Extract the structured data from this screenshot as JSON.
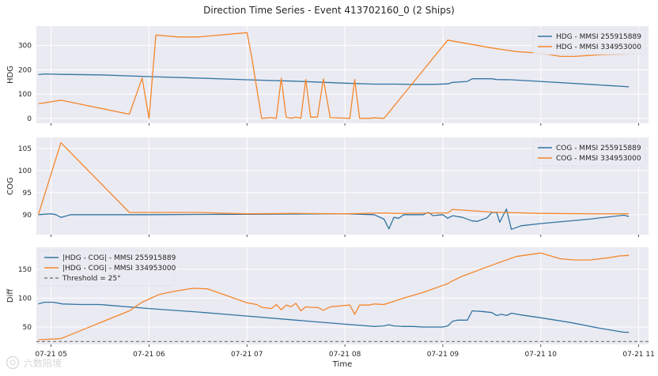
{
  "figure": {
    "title": "Direction Time Series - Event 413702160_0 (2 Ships)",
    "watermark": "六数陪境"
  },
  "colors": {
    "blue": "#3274a1",
    "orange": "#f5862a",
    "panel_bg": "#eaeaf2",
    "grid": "#ffffff",
    "threshold": "#7f7f7f"
  },
  "chart_data": [
    {
      "type": "line",
      "id": "hdg",
      "ylabel": "HDG",
      "xlabel": "",
      "ylim": [
        -20,
        380
      ],
      "yticks": [
        0,
        100,
        200,
        300
      ],
      "xlim": [
        4.85,
        11.1
      ],
      "xticks": [
        5,
        6,
        7,
        8,
        9,
        10,
        11
      ],
      "grid": true,
      "legend_position": "top-right",
      "series": [
        {
          "name": "HDG - MMSI 255915889",
          "color": "#3274a1",
          "points": [
            [
              4.87,
              180
            ],
            [
              4.93,
              183
            ],
            [
              5.02,
              182
            ],
            [
              5.12,
              181
            ],
            [
              5.5,
              179
            ],
            [
              6.0,
              172
            ],
            [
              6.5,
              166
            ],
            [
              7.0,
              159
            ],
            [
              7.5,
              153
            ],
            [
              8.0,
              145
            ],
            [
              8.3,
              141
            ],
            [
              8.5,
              141
            ],
            [
              8.7,
              140
            ],
            [
              8.9,
              140
            ],
            [
              9.05,
              142
            ],
            [
              9.1,
              148
            ],
            [
              9.25,
              152
            ],
            [
              9.3,
              163
            ],
            [
              9.5,
              163
            ],
            [
              9.55,
              160
            ],
            [
              9.7,
              159
            ],
            [
              10.0,
              152
            ],
            [
              10.5,
              140
            ],
            [
              10.9,
              130
            ]
          ]
        },
        {
          "name": "HDG - MMSI 334953000",
          "color": "#f5862a",
          "points": [
            [
              4.87,
              60
            ],
            [
              5.1,
              75
            ],
            [
              5.8,
              17
            ],
            [
              5.93,
              166
            ],
            [
              6.0,
              0
            ],
            [
              6.07,
              343
            ],
            [
              6.3,
              335
            ],
            [
              6.5,
              335
            ],
            [
              7.0,
              353
            ],
            [
              7.05,
              250
            ],
            [
              7.15,
              0
            ],
            [
              7.25,
              3
            ],
            [
              7.3,
              0
            ],
            [
              7.35,
              165
            ],
            [
              7.4,
              5
            ],
            [
              7.45,
              0
            ],
            [
              7.5,
              5
            ],
            [
              7.55,
              0
            ],
            [
              7.6,
              160
            ],
            [
              7.65,
              5
            ],
            [
              7.72,
              5
            ],
            [
              7.78,
              162
            ],
            [
              7.85,
              3
            ],
            [
              8.05,
              0
            ],
            [
              8.1,
              160
            ],
            [
              8.15,
              0
            ],
            [
              8.25,
              0
            ],
            [
              8.3,
              2
            ],
            [
              8.4,
              0
            ],
            [
              9.05,
              322
            ],
            [
              9.5,
              290
            ],
            [
              9.75,
              275
            ],
            [
              10.0,
              268
            ],
            [
              10.2,
              255
            ],
            [
              10.35,
              255
            ],
            [
              10.6,
              262
            ],
            [
              10.9,
              265
            ]
          ]
        }
      ]
    },
    {
      "type": "line",
      "id": "cog",
      "ylabel": "COG",
      "xlabel": "",
      "ylim": [
        85.5,
        107.5
      ],
      "yticks": [
        90,
        95,
        100,
        105
      ],
      "xlim": [
        4.85,
        11.1
      ],
      "xticks": [
        5,
        6,
        7,
        8,
        9,
        10,
        11
      ],
      "grid": true,
      "legend_position": "top-right",
      "series": [
        {
          "name": "COG - MMSI 255915889",
          "color": "#3274a1",
          "points": [
            [
              4.87,
              90
            ],
            [
              5.0,
              90.2
            ],
            [
              5.05,
              90
            ],
            [
              5.1,
              89.4
            ],
            [
              5.2,
              90
            ],
            [
              5.5,
              90
            ],
            [
              6.0,
              90
            ],
            [
              7.0,
              90.1
            ],
            [
              8.0,
              90.2
            ],
            [
              8.3,
              90
            ],
            [
              8.35,
              89.5
            ],
            [
              8.4,
              89
            ],
            [
              8.45,
              86.8
            ],
            [
              8.5,
              89.4
            ],
            [
              8.55,
              89.2
            ],
            [
              8.6,
              90
            ],
            [
              8.8,
              90
            ],
            [
              8.85,
              90.5
            ],
            [
              8.9,
              89.8
            ],
            [
              9.0,
              90
            ],
            [
              9.05,
              89.2
            ],
            [
              9.1,
              89.8
            ],
            [
              9.2,
              89.4
            ],
            [
              9.3,
              88.6
            ],
            [
              9.35,
              88.5
            ],
            [
              9.4,
              88.9
            ],
            [
              9.45,
              89.3
            ],
            [
              9.5,
              90.5
            ],
            [
              9.55,
              90.5
            ],
            [
              9.58,
              88.3
            ],
            [
              9.65,
              91.3
            ],
            [
              9.7,
              86.7
            ],
            [
              9.8,
              87.5
            ],
            [
              10.0,
              88
            ],
            [
              10.5,
              89
            ],
            [
              10.85,
              89.9
            ],
            [
              10.9,
              89.6
            ]
          ]
        },
        {
          "name": "COG - MMSI 334953000",
          "color": "#f5862a",
          "points": [
            [
              4.87,
              90
            ],
            [
              5.1,
              106.3
            ],
            [
              5.8,
              90.5
            ],
            [
              6.5,
              90.5
            ],
            [
              7.0,
              90.2
            ],
            [
              7.5,
              90.3
            ],
            [
              8.0,
              90.2
            ],
            [
              8.4,
              90.4
            ],
            [
              8.5,
              90.3
            ],
            [
              9.0,
              90.4
            ],
            [
              9.05,
              90.4
            ],
            [
              9.1,
              91.2
            ],
            [
              9.5,
              90.6
            ],
            [
              10.0,
              90.3
            ],
            [
              10.5,
              90.2
            ],
            [
              10.9,
              90.2
            ]
          ]
        }
      ]
    },
    {
      "type": "line",
      "id": "diff",
      "ylabel": "Diff",
      "xlabel": "Time",
      "ylim": [
        20,
        188
      ],
      "yticks": [
        50,
        100,
        150
      ],
      "xlim": [
        4.85,
        11.1
      ],
      "xticks": [
        5,
        6,
        7,
        8,
        9,
        10,
        11
      ],
      "xtick_labels": [
        "07-21 05",
        "07-21 06",
        "07-21 07",
        "07-21 08",
        "07-21 09",
        "07-21 10",
        "07-21 11"
      ],
      "grid": true,
      "legend_position": "top-left",
      "threshold": {
        "name": "Threshold = 25°",
        "value": 25,
        "color": "#7f7f7f"
      },
      "series": [
        {
          "name": "|HDG - COG| - MMSI 255915889",
          "color": "#3274a1",
          "points": [
            [
              4.87,
              90
            ],
            [
              4.93,
              93
            ],
            [
              5.02,
              93
            ],
            [
              5.12,
              90
            ],
            [
              5.3,
              89
            ],
            [
              5.5,
              89
            ],
            [
              6.0,
              82
            ],
            [
              6.5,
              76
            ],
            [
              7.0,
              69
            ],
            [
              7.5,
              62
            ],
            [
              8.0,
              55
            ],
            [
              8.3,
              51
            ],
            [
              8.4,
              52
            ],
            [
              8.45,
              54
            ],
            [
              8.5,
              52
            ],
            [
              8.6,
              51
            ],
            [
              8.7,
              51
            ],
            [
              8.8,
              50
            ],
            [
              9.0,
              50
            ],
            [
              9.05,
              52
            ],
            [
              9.1,
              60
            ],
            [
              9.15,
              62
            ],
            [
              9.25,
              62
            ],
            [
              9.3,
              78
            ],
            [
              9.4,
              77
            ],
            [
              9.5,
              75
            ],
            [
              9.55,
              70
            ],
            [
              9.6,
              72
            ],
            [
              9.65,
              70
            ],
            [
              9.7,
              74
            ],
            [
              9.8,
              71
            ],
            [
              10.0,
              66
            ],
            [
              10.3,
              58
            ],
            [
              10.6,
              48
            ],
            [
              10.85,
              41
            ],
            [
              10.9,
              41
            ]
          ]
        },
        {
          "name": "|HDG - COG| - MMSI 334953000",
          "color": "#f5862a",
          "points": [
            [
              4.87,
              28
            ],
            [
              5.1,
              30
            ],
            [
              5.8,
              78
            ],
            [
              5.93,
              93
            ],
            [
              6.1,
              106
            ],
            [
              6.2,
              110
            ],
            [
              6.3,
              113
            ],
            [
              6.45,
              117
            ],
            [
              6.6,
              116
            ],
            [
              7.0,
              92
            ],
            [
              7.1,
              89
            ],
            [
              7.15,
              84
            ],
            [
              7.25,
              82
            ],
            [
              7.3,
              89
            ],
            [
              7.35,
              80
            ],
            [
              7.4,
              88
            ],
            [
              7.45,
              85
            ],
            [
              7.5,
              91
            ],
            [
              7.55,
              78
            ],
            [
              7.6,
              85
            ],
            [
              7.65,
              84
            ],
            [
              7.72,
              84
            ],
            [
              7.78,
              79
            ],
            [
              7.85,
              85
            ],
            [
              8.05,
              88
            ],
            [
              8.1,
              72
            ],
            [
              8.15,
              88
            ],
            [
              8.25,
              88
            ],
            [
              8.3,
              90
            ],
            [
              8.4,
              89
            ],
            [
              8.6,
              100
            ],
            [
              8.8,
              110
            ],
            [
              9.0,
              122
            ],
            [
              9.05,
              125
            ],
            [
              9.1,
              130
            ],
            [
              9.2,
              138
            ],
            [
              9.5,
              157
            ],
            [
              9.75,
              172
            ],
            [
              10.0,
              178
            ],
            [
              10.2,
              168
            ],
            [
              10.35,
              166
            ],
            [
              10.5,
              166
            ],
            [
              10.7,
              170
            ],
            [
              10.8,
              173
            ],
            [
              10.9,
              174
            ]
          ]
        }
      ]
    }
  ]
}
